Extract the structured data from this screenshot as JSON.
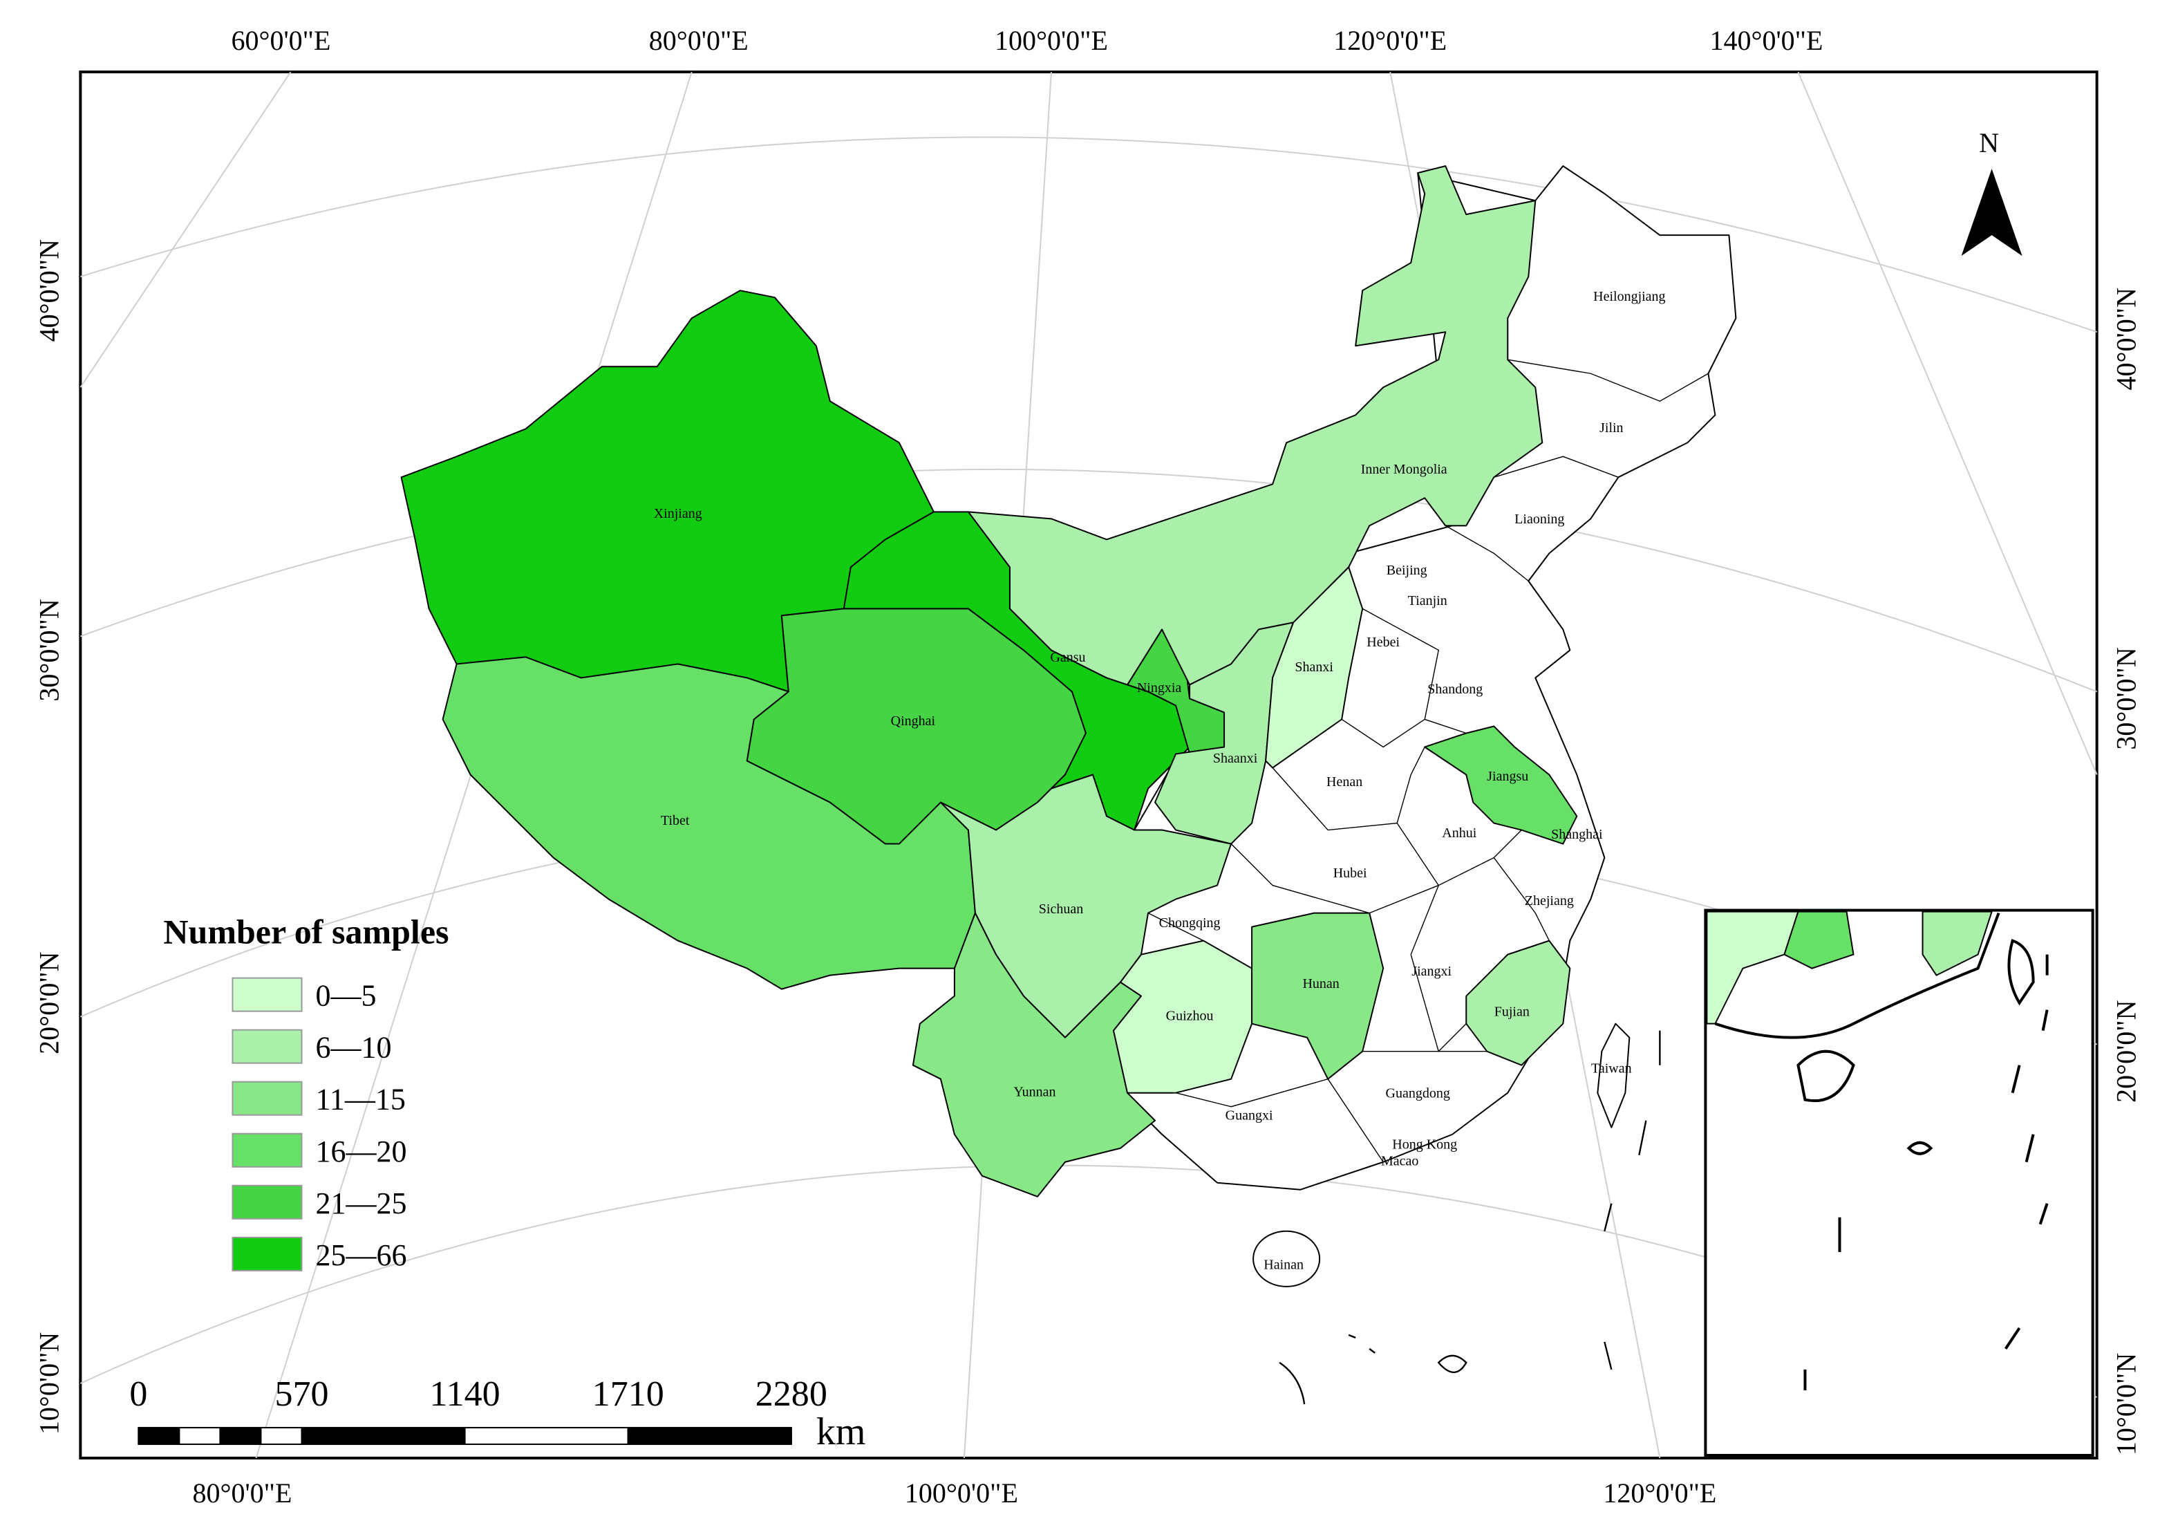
{
  "map": {
    "graticule": {
      "top": [
        "60°0'0\"E",
        "80°0'0\"E",
        "100°0'0\"E",
        "120°0'0\"E",
        "140°0'0\"E"
      ],
      "bottom": [
        "80°0'0\"E",
        "100°0'0\"E",
        "120°0'0\"E"
      ],
      "left": [
        "40°0'0\"N",
        "30°0'0\"N",
        "20°0'0\"N",
        "10°0'0\"N"
      ],
      "right": [
        "40°0'0\"N",
        "30°0'0\"N",
        "20°0'0\"N",
        "10°0'0\"N"
      ]
    },
    "north": "N",
    "legend": {
      "title": "Number of samples",
      "classes": [
        {
          "label": "0—5",
          "color": "#ccffcc"
        },
        {
          "label": "6—10",
          "color": "#aaf0aa"
        },
        {
          "label": "11—15",
          "color": "#88e888"
        },
        {
          "label": "16—20",
          "color": "#66e066"
        },
        {
          "label": "21—25",
          "color": "#44d444"
        },
        {
          "label": "25—66",
          "color": "#11cc11"
        }
      ]
    },
    "scale_bar": {
      "ticks": [
        0,
        570,
        1140,
        1710,
        2280
      ],
      "unit": "km"
    },
    "provinces": [
      {
        "name": "Xinjiang",
        "class": 5
      },
      {
        "name": "Tibet",
        "class": 3
      },
      {
        "name": "Qinghai",
        "class": 4
      },
      {
        "name": "Gansu",
        "class": 5
      },
      {
        "name": "Ningxia",
        "class": 4
      },
      {
        "name": "Inner Mongolia",
        "class": 1
      },
      {
        "name": "Shaanxi",
        "class": 1
      },
      {
        "name": "Shanxi",
        "class": 0
      },
      {
        "name": "Sichuan",
        "class": 1
      },
      {
        "name": "Yunnan",
        "class": 2
      },
      {
        "name": "Guizhou",
        "class": 0
      },
      {
        "name": "Hunan",
        "class": 2
      },
      {
        "name": "Fujian",
        "class": 1
      },
      {
        "name": "Jiangsu",
        "class": 3
      },
      {
        "name": "Chongqing"
      },
      {
        "name": "Heilongjiang"
      },
      {
        "name": "Jilin"
      },
      {
        "name": "Liaoning"
      },
      {
        "name": "Beijing"
      },
      {
        "name": "Tianjin"
      },
      {
        "name": "Hebei"
      },
      {
        "name": "Shandong"
      },
      {
        "name": "Henan"
      },
      {
        "name": "Anhui"
      },
      {
        "name": "Shanghai"
      },
      {
        "name": "Hubei"
      },
      {
        "name": "Zhejiang"
      },
      {
        "name": "Jiangxi"
      },
      {
        "name": "Guangxi"
      },
      {
        "name": "Guangdong"
      },
      {
        "name": "Hong Kong"
      },
      {
        "name": "Macao"
      },
      {
        "name": "Hainan"
      },
      {
        "name": "Taiwan"
      }
    ]
  }
}
